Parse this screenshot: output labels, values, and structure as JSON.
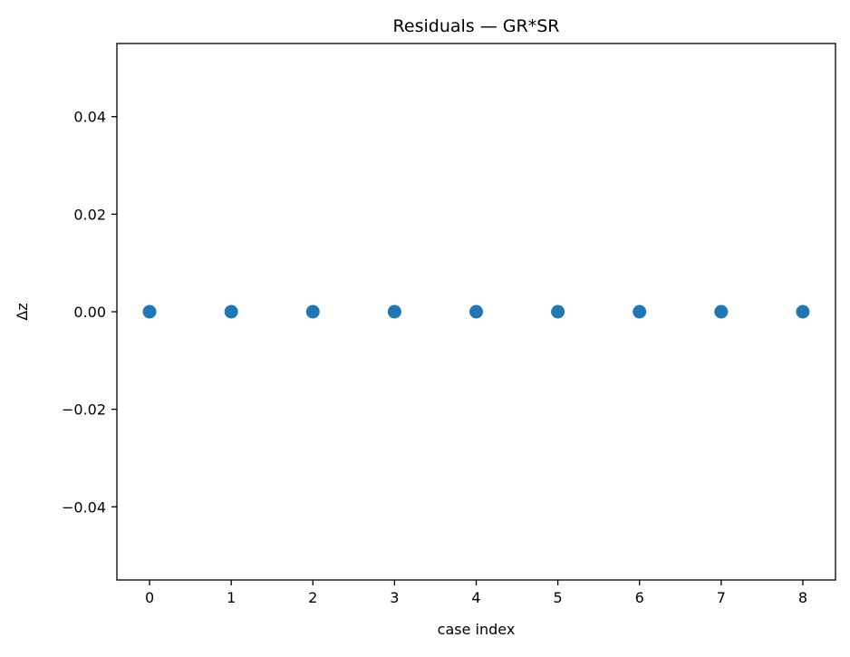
{
  "chart_data": {
    "type": "scatter",
    "title": "Residuals — GR*SR",
    "xlabel": "case index",
    "ylabel": "Δz",
    "xlim": [
      -0.4,
      8.4
    ],
    "ylim": [
      -0.055,
      0.055
    ],
    "x_ticks": [
      0,
      1,
      2,
      3,
      4,
      5,
      6,
      7,
      8
    ],
    "x_tick_labels": [
      "0",
      "1",
      "2",
      "3",
      "4",
      "5",
      "6",
      "7",
      "8"
    ],
    "y_ticks": [
      -0.04,
      -0.02,
      0.0,
      0.02,
      0.04
    ],
    "y_tick_labels": [
      "−0.04",
      "−0.02",
      "0.00",
      "0.02",
      "0.04"
    ],
    "grid": false,
    "series": [
      {
        "x": [
          0,
          1,
          2,
          3,
          4,
          5,
          6,
          7,
          8
        ],
        "y": [
          0,
          0,
          0,
          0,
          0,
          0,
          0,
          0,
          0
        ],
        "color": "#1f77b4"
      }
    ]
  }
}
